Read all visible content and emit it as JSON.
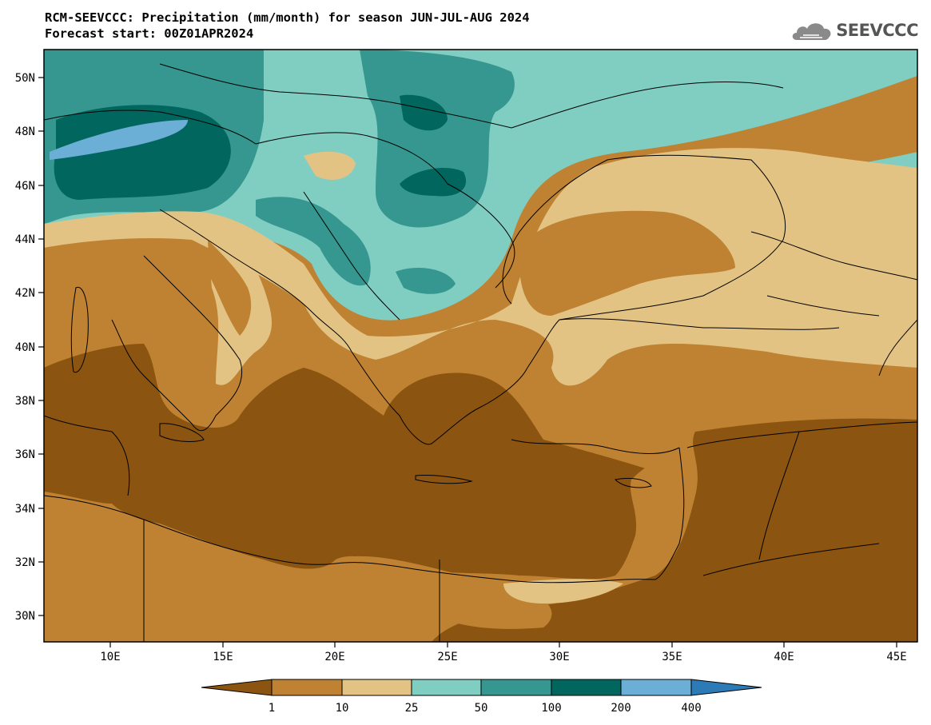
{
  "header": {
    "title": "RCM-SEEVCCC: Precipitation (mm/month) for season JUN-JUL-AUG 2024",
    "subtitle": "Forecast start: 00Z01APR2024"
  },
  "logo": {
    "text": "SEEVCCC",
    "icon": "cloud-logo-icon"
  },
  "chart_data": {
    "type": "heatmap",
    "title": "RCM-SEEVCCC: Precipitation (mm/month) for season JUN-JUL-AUG 2024",
    "subtitle": "Forecast start: 00Z01APR2024",
    "x_ticks": [
      "10E",
      "15E",
      "20E",
      "25E",
      "30E",
      "35E",
      "40E",
      "45E"
    ],
    "y_ticks": [
      "50N",
      "48N",
      "46N",
      "44N",
      "42N",
      "40N",
      "38N",
      "36N",
      "34N",
      "32N",
      "30N"
    ],
    "legend": {
      "placement": "bottom",
      "labels": [
        "1",
        "10",
        "25",
        "50",
        "100",
        "200",
        "400"
      ],
      "colors": [
        "#8b5410",
        "#be8232",
        "#e3c384",
        "#80cdc1",
        "#35978f",
        "#01665e",
        "#6baed6",
        "#2c7bb6"
      ]
    }
  },
  "colors": {
    "c1": "#8b5410",
    "c2": "#be8232",
    "c3": "#e3c384",
    "c4": "#80cdc1",
    "c5": "#35978f",
    "c6": "#01665e",
    "c7": "#6baed6",
    "c8": "#2c7bb6"
  }
}
